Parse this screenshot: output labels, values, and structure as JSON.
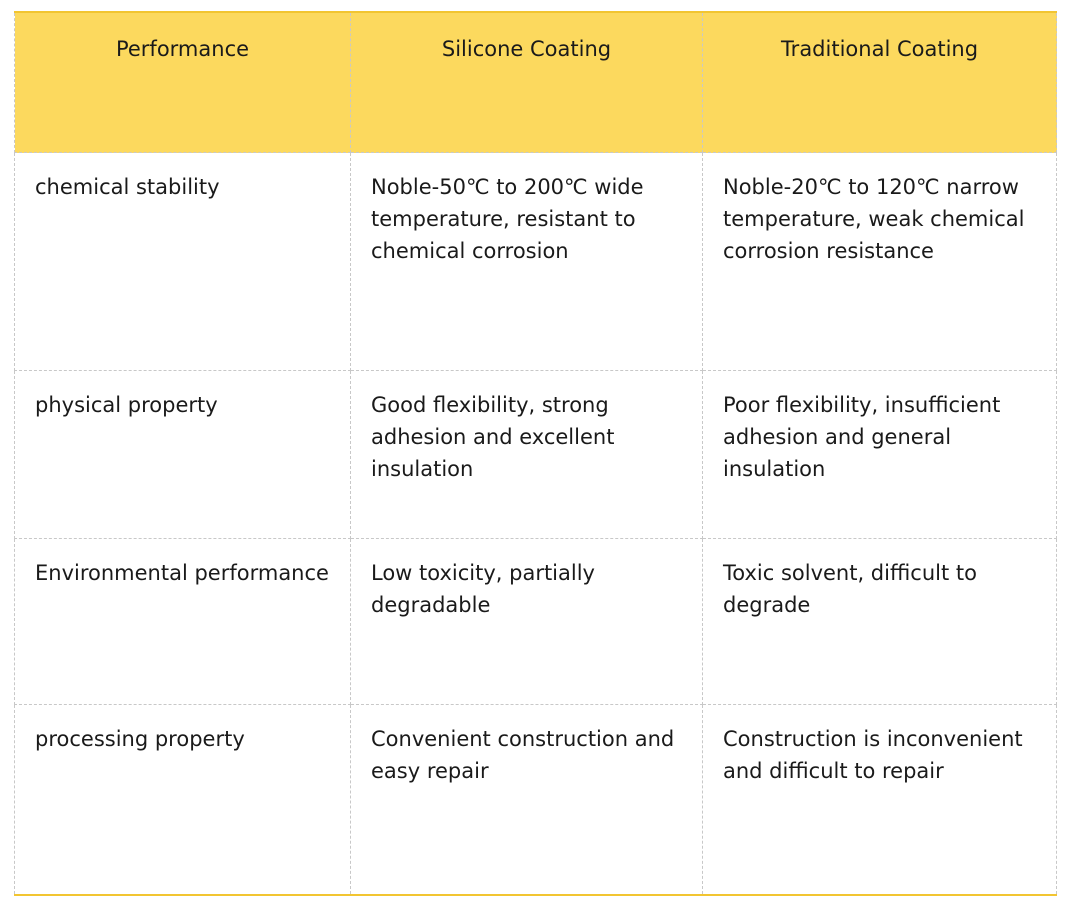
{
  "table": {
    "header": [
      "Performance",
      "Silicone Coating",
      "Traditional Coating"
    ],
    "rows": [
      [
        "chemical stability",
        "Noble-50℃ to 200℃ wide temperature, resistant to chemical corrosion",
        "Noble-20℃ to 120℃ narrow temperature, weak chemical corrosion resistance"
      ],
      [
        "physical property",
        "Good flexibility, strong adhesion and excellent insulation",
        "Poor flexibility, insufficient adhesion and general insulation"
      ],
      [
        "Environmental performance",
        "Low toxicity, partially degradable",
        "Toxic solvent, difficult to degrade"
      ],
      [
        "processing property",
        "Convenient construction and easy repair",
        "Construction is inconvenient and difficult to repair"
      ]
    ]
  }
}
